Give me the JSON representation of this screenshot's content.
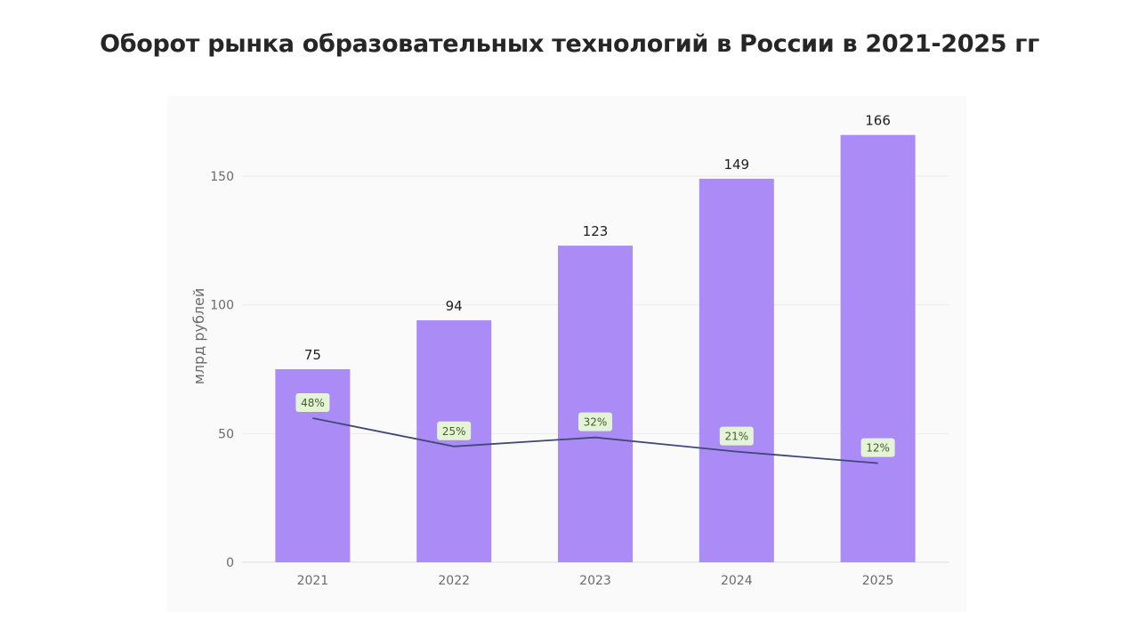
{
  "title": "Оборот рынка образовательных технологий в России в 2021-2025 гг",
  "chart_data": {
    "type": "bar",
    "title": "Оборот рынка образовательных технологий в России в 2021-2025 гг",
    "xlabel": "",
    "ylabel": "млрд рублей",
    "categories": [
      "2021",
      "2022",
      "2023",
      "2024",
      "2025"
    ],
    "series": [
      {
        "type": "bar",
        "values": [
          75,
          94,
          123,
          149,
          166
        ],
        "labels": [
          "75",
          "94",
          "123",
          "149",
          "166"
        ],
        "color": "#ab8cf7"
      },
      {
        "type": "line",
        "axis_values": [
          56,
          45,
          48.5,
          43,
          38.5
        ],
        "labels": [
          "48%",
          "25%",
          "32%",
          "21%",
          "12%"
        ],
        "color": "#3f4876"
      }
    ],
    "ylim": [
      0,
      166
    ],
    "yticks": [
      "0",
      "50",
      "100",
      "150"
    ],
    "grid": true,
    "label_bg": "#e3f5d6"
  }
}
